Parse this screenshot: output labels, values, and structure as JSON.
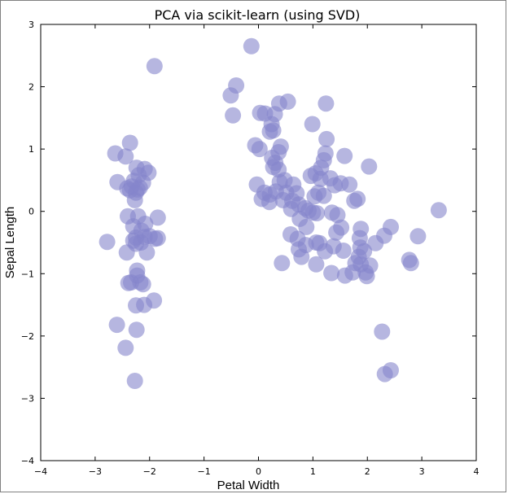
{
  "chart_data": {
    "type": "scatter",
    "title": "PCA via scikit-learn (using SVD)",
    "xlabel": "Petal Width",
    "ylabel": "Sepal Length",
    "xlim": [
      -4,
      4
    ],
    "ylim": [
      -4,
      3
    ],
    "x_ticks": [
      "−4",
      "−3",
      "−2",
      "−1",
      "0",
      "1",
      "2",
      "3",
      "4"
    ],
    "y_ticks": [
      "3",
      "2",
      "1",
      "0",
      "−1",
      "−2",
      "−3",
      "−4"
    ],
    "x_tick_values": [
      -4,
      -3,
      -2,
      -1,
      0,
      1,
      2,
      3,
      4
    ],
    "y_tick_values": [
      3,
      2,
      1,
      0,
      -1,
      -2,
      -3,
      -4
    ],
    "grid": false,
    "marker_color": "#8585cc",
    "marker_opacity": 0.6,
    "series": [
      {
        "points": [
          [
            -1.91,
            2.33
          ],
          [
            -2.63,
            0.93
          ],
          [
            -2.36,
            1.1
          ],
          [
            -2.44,
            0.88
          ],
          [
            -2.59,
            0.47
          ],
          [
            -2.24,
            0.7
          ],
          [
            -2.09,
            0.68
          ],
          [
            -2.02,
            0.62
          ],
          [
            -2.2,
            0.58
          ],
          [
            -2.29,
            0.49
          ],
          [
            -2.12,
            0.46
          ],
          [
            -2.41,
            0.37
          ],
          [
            -2.33,
            0.4
          ],
          [
            -2.22,
            0.35
          ],
          [
            -2.36,
            0.34
          ],
          [
            -2.25,
            0.3
          ],
          [
            -2.18,
            0.38
          ],
          [
            -2.27,
            0.18
          ],
          [
            -2.4,
            -0.08
          ],
          [
            -2.21,
            -0.08
          ],
          [
            -2.08,
            -0.2
          ],
          [
            -1.85,
            -0.1
          ],
          [
            -2.3,
            -0.24
          ],
          [
            -2.15,
            -0.31
          ],
          [
            -2.78,
            -0.49
          ],
          [
            -2.25,
            -0.42
          ],
          [
            -2.09,
            -0.41
          ],
          [
            -1.9,
            -0.44
          ],
          [
            -2.3,
            -0.47
          ],
          [
            -2.16,
            -0.5
          ],
          [
            -2.25,
            -0.52
          ],
          [
            -2.42,
            -0.66
          ],
          [
            -2.05,
            -0.66
          ],
          [
            -2.23,
            -0.95
          ],
          [
            -2.23,
            -1.03
          ],
          [
            -2.34,
            -1.14
          ],
          [
            -2.39,
            -1.15
          ],
          [
            -2.17,
            -1.14
          ],
          [
            -2.12,
            -1.17
          ],
          [
            -1.92,
            -1.43
          ],
          [
            -2.1,
            -1.5
          ],
          [
            -2.25,
            -1.51
          ],
          [
            -2.6,
            -1.82
          ],
          [
            -2.24,
            -1.9
          ],
          [
            -2.44,
            -2.19
          ],
          [
            -2.27,
            -2.72
          ],
          [
            -1.85,
            -0.43
          ],
          [
            -2.0,
            -0.4
          ],
          [
            -0.13,
            2.65
          ],
          [
            -0.41,
            2.02
          ],
          [
            -0.51,
            1.86
          ],
          [
            -0.47,
            1.54
          ],
          [
            0.54,
            1.76
          ],
          [
            0.38,
            1.73
          ],
          [
            1.24,
            1.73
          ],
          [
            0.03,
            1.58
          ],
          [
            0.12,
            1.57
          ],
          [
            0.3,
            1.56
          ],
          [
            0.24,
            1.4
          ],
          [
            0.99,
            1.4
          ],
          [
            0.21,
            1.28
          ],
          [
            0.27,
            1.3
          ],
          [
            1.25,
            1.16
          ],
          [
            -0.06,
            1.06
          ],
          [
            0.02,
            1.0
          ],
          [
            0.41,
            1.04
          ],
          [
            0.37,
            0.95
          ],
          [
            1.23,
            0.93
          ],
          [
            1.58,
            0.89
          ],
          [
            0.25,
            0.86
          ],
          [
            0.31,
            0.78
          ],
          [
            0.27,
            0.71
          ],
          [
            0.37,
            0.67
          ],
          [
            1.2,
            0.82
          ],
          [
            2.03,
            0.72
          ],
          [
            1.15,
            0.7
          ],
          [
            1.05,
            0.61
          ],
          [
            0.96,
            0.57
          ],
          [
            1.32,
            0.53
          ],
          [
            1.14,
            0.52
          ],
          [
            0.48,
            0.5
          ],
          [
            0.39,
            0.47
          ],
          [
            0.64,
            0.43
          ],
          [
            1.51,
            0.45
          ],
          [
            1.4,
            0.42
          ],
          [
            1.67,
            0.43
          ],
          [
            -0.03,
            0.43
          ],
          [
            0.11,
            0.3
          ],
          [
            0.21,
            0.27
          ],
          [
            0.32,
            0.32
          ],
          [
            0.51,
            0.3
          ],
          [
            0.7,
            0.29
          ],
          [
            1.1,
            0.3
          ],
          [
            1.2,
            0.25
          ],
          [
            1.03,
            0.24
          ],
          [
            1.82,
            0.2
          ],
          [
            1.76,
            0.17
          ],
          [
            0.06,
            0.2
          ],
          [
            0.2,
            0.15
          ],
          [
            0.45,
            0.18
          ],
          [
            0.62,
            0.17
          ],
          [
            0.74,
            0.11
          ],
          [
            0.86,
            0.05
          ],
          [
            0.92,
            0.01
          ],
          [
            1.07,
            -0.03
          ],
          [
            1.35,
            -0.02
          ],
          [
            1.45,
            -0.06
          ],
          [
            0.6,
            0.04
          ],
          [
            0.76,
            -0.12
          ],
          [
            0.88,
            -0.25
          ],
          [
            3.31,
            0.02
          ],
          [
            2.43,
            -0.25
          ],
          [
            1.88,
            -0.28
          ],
          [
            1.52,
            -0.26
          ],
          [
            1.43,
            -0.34
          ],
          [
            2.31,
            -0.39
          ],
          [
            2.93,
            -0.4
          ],
          [
            1.86,
            -0.43
          ],
          [
            0.59,
            -0.37
          ],
          [
            0.72,
            -0.44
          ],
          [
            1.06,
            -0.5
          ],
          [
            2.15,
            -0.51
          ],
          [
            0.87,
            -0.54
          ],
          [
            1.38,
            -0.56
          ],
          [
            1.22,
            -0.64
          ],
          [
            0.74,
            -0.61
          ],
          [
            1.87,
            -0.58
          ],
          [
            1.56,
            -0.63
          ],
          [
            1.94,
            -0.64
          ],
          [
            1.84,
            -0.73
          ],
          [
            0.43,
            -0.83
          ],
          [
            0.79,
            -0.73
          ],
          [
            1.06,
            -0.85
          ],
          [
            2.77,
            -0.78
          ],
          [
            2.8,
            -0.83
          ],
          [
            1.88,
            -0.85
          ],
          [
            1.34,
            -0.99
          ],
          [
            1.59,
            -1.03
          ],
          [
            1.97,
            -0.98
          ],
          [
            1.99,
            -1.04
          ],
          [
            1.73,
            -0.98
          ],
          [
            2.05,
            -0.87
          ],
          [
            1.78,
            -0.83
          ],
          [
            2.27,
            -1.93
          ],
          [
            2.32,
            -2.61
          ],
          [
            2.43,
            -2.55
          ],
          [
            1.12,
            -0.51
          ],
          [
            1.0,
            -0.02
          ]
        ]
      }
    ]
  }
}
